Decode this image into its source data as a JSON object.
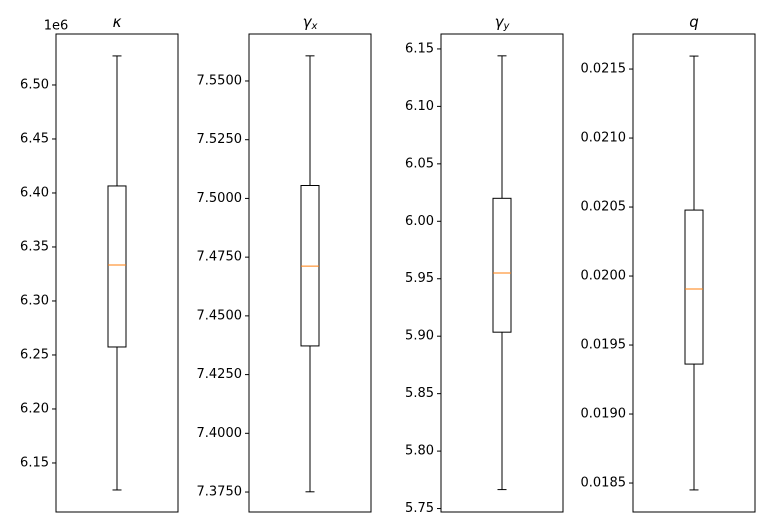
{
  "chart_data": [
    {
      "type": "box",
      "title": "κ",
      "offset_label": "1e6",
      "ylim": [
        6.1046,
        6.5472
      ],
      "yticks": [
        {
          "value": 6.15,
          "label": "6.15"
        },
        {
          "value": 6.2,
          "label": "6.20"
        },
        {
          "value": 6.25,
          "label": "6.25"
        },
        {
          "value": 6.3,
          "label": "6.30"
        },
        {
          "value": 6.35,
          "label": "6.35"
        },
        {
          "value": 6.4,
          "label": "6.40"
        },
        {
          "value": 6.45,
          "label": "6.45"
        },
        {
          "value": 6.5,
          "label": "6.50"
        }
      ],
      "whislo": 6.125,
      "q1": 6.2574,
      "med": 6.3333,
      "q3": 6.4065,
      "whishi": 6.5269,
      "color": "#000000",
      "median_color": "#ff7f0e"
    },
    {
      "type": "box",
      "title": "γ",
      "title_sub": "x",
      "ylim": [
        7.3665,
        7.57
      ],
      "yticks": [
        {
          "value": 7.375,
          "label": "7.3750"
        },
        {
          "value": 7.4,
          "label": "7.4000"
        },
        {
          "value": 7.425,
          "label": "7.4250"
        },
        {
          "value": 7.45,
          "label": "7.4500"
        },
        {
          "value": 7.475,
          "label": "7.4750"
        },
        {
          "value": 7.5,
          "label": "7.5000"
        },
        {
          "value": 7.525,
          "label": "7.5250"
        },
        {
          "value": 7.55,
          "label": "7.5500"
        }
      ],
      "whislo": 7.3751,
      "q1": 7.4372,
      "med": 7.4712,
      "q3": 7.5055,
      "whishi": 7.5607,
      "color": "#000000",
      "median_color": "#ff7f0e"
    },
    {
      "type": "box",
      "title": "γ",
      "title_sub": "y",
      "ylim": [
        5.747,
        6.163
      ],
      "yticks": [
        5.75,
        {
          "value": 5.8,
          "label": "5.80"
        },
        5.85,
        {
          "value": 5.9,
          "label": "5.90"
        },
        5.95,
        {
          "value": 6.0,
          "label": "6.00"
        },
        6.05,
        {
          "value": 6.1,
          "label": "6.10"
        },
        6.15
      ],
      "whislo": 5.7665,
      "q1": 5.9035,
      "med": 5.955,
      "q3": 6.02,
      "whishi": 6.144,
      "color": "#000000",
      "median_color": "#ff7f0e"
    },
    {
      "type": "box",
      "title": "q",
      "ylim": [
        0.01829,
        0.021754
      ],
      "yticks": [
        0.0185,
        {
          "value": 0.019,
          "label": "0.0190"
        },
        0.0195,
        {
          "value": 0.02,
          "label": "0.0200"
        },
        0.0205,
        {
          "value": 0.021,
          "label": "0.0210"
        },
        0.0215
      ],
      "whislo": 0.01845,
      "q1": 0.019362,
      "med": 0.019906,
      "q3": 0.020478,
      "whishi": 0.021594,
      "color": "#000000",
      "median_color": "#ff7f0e"
    }
  ]
}
